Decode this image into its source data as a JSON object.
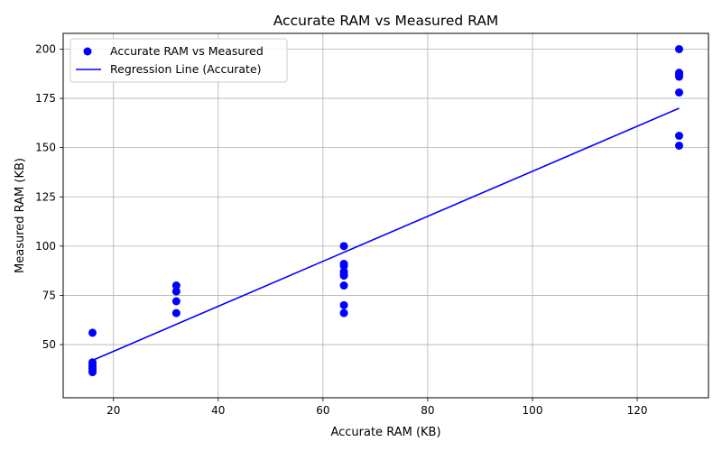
{
  "chart_data": {
    "type": "scatter",
    "title": "Accurate RAM vs Measured RAM",
    "xlabel": "Accurate RAM (KB)",
    "ylabel": "Measured RAM (KB)",
    "xlim": [
      10.4,
      133.6
    ],
    "ylim": [
      23.0,
      208.0
    ],
    "xticks": [
      20,
      40,
      60,
      80,
      100,
      120
    ],
    "yticks": [
      50,
      75,
      100,
      125,
      150,
      175,
      200
    ],
    "grid": true,
    "legend_position": "top-left",
    "colors": {
      "points": "#0000ff",
      "line": "#0000ff",
      "grid": "#b0b0b0"
    },
    "series": [
      {
        "name": "Accurate RAM vs Measured",
        "kind": "scatter",
        "points": [
          [
            16,
            56
          ],
          [
            16,
            41
          ],
          [
            16,
            40
          ],
          [
            16,
            39
          ],
          [
            16,
            38
          ],
          [
            16,
            37
          ],
          [
            16,
            36
          ],
          [
            32,
            80
          ],
          [
            32,
            77
          ],
          [
            32,
            72
          ],
          [
            32,
            66
          ],
          [
            64,
            100
          ],
          [
            64,
            91
          ],
          [
            64,
            90
          ],
          [
            64,
            87
          ],
          [
            64,
            86
          ],
          [
            64,
            85
          ],
          [
            64,
            80
          ],
          [
            64,
            70
          ],
          [
            64,
            66
          ],
          [
            128,
            200
          ],
          [
            128,
            188
          ],
          [
            128,
            187
          ],
          [
            128,
            186
          ],
          [
            128,
            178
          ],
          [
            128,
            156
          ],
          [
            128,
            151
          ]
        ]
      },
      {
        "name": "Regression Line (Accurate)",
        "kind": "line",
        "points": [
          [
            16,
            42
          ],
          [
            128,
            170
          ]
        ]
      }
    ]
  }
}
